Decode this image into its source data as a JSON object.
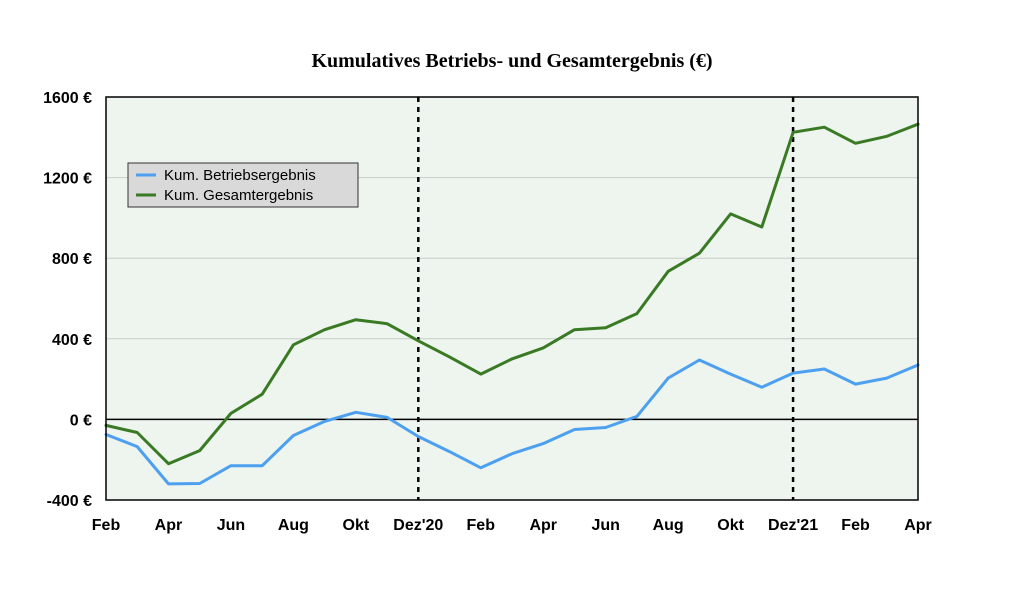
{
  "chart_data": {
    "type": "line",
    "title": "Kumulatives Betriebs- und Gesamtergebnis (€)",
    "xlabel": "",
    "ylabel": "",
    "x": [
      "2020-02",
      "2020-03",
      "2020-04",
      "2020-05",
      "2020-06",
      "2020-07",
      "2020-08",
      "2020-09",
      "2020-10",
      "2020-11",
      "2020-12",
      "2021-01",
      "2021-02",
      "2021-03",
      "2021-04",
      "2021-05",
      "2021-06",
      "2021-07",
      "2021-08",
      "2021-09",
      "2021-10",
      "2021-11",
      "2021-12",
      "2022-01",
      "2022-02",
      "2022-03",
      "2022-04"
    ],
    "x_tick_labels": [
      "Feb",
      "Apr",
      "Jun",
      "Aug",
      "Okt",
      "Dez'20",
      "Feb",
      "Apr",
      "Jun",
      "Aug",
      "Okt",
      "Dez'21",
      "Feb",
      "Apr"
    ],
    "ylim": [
      -400,
      1600
    ],
    "y_ticks": [
      -400,
      0,
      400,
      800,
      1200,
      1600
    ],
    "y_tick_labels": [
      "-400 €",
      "0 €",
      "400 €",
      "800 €",
      "1200 €",
      "1600 €"
    ],
    "grid": "horizontal",
    "legend_position": "upper-left",
    "year_marker_lines": [
      "Dez'20",
      "Dez'21"
    ],
    "background_color": "#edf5ee",
    "series": [
      {
        "name": "Kum. Betriebsergebnis",
        "color": "#4da0f0",
        "values": [
          -75,
          -135,
          -320,
          -318,
          -230,
          -230,
          -80,
          -10,
          35,
          10,
          -85,
          -160,
          -240,
          -170,
          -120,
          -50,
          -40,
          15,
          205,
          295,
          225,
          160,
          230,
          250,
          175,
          205,
          270
        ]
      },
      {
        "name": "Kum. Gesamtergebnis",
        "color": "#3a7a24",
        "values": [
          -30,
          -65,
          -220,
          -155,
          30,
          125,
          370,
          445,
          495,
          475,
          390,
          310,
          225,
          300,
          355,
          445,
          455,
          525,
          735,
          825,
          1020,
          955,
          1425,
          1450,
          1370,
          1405,
          1465
        ]
      }
    ]
  }
}
